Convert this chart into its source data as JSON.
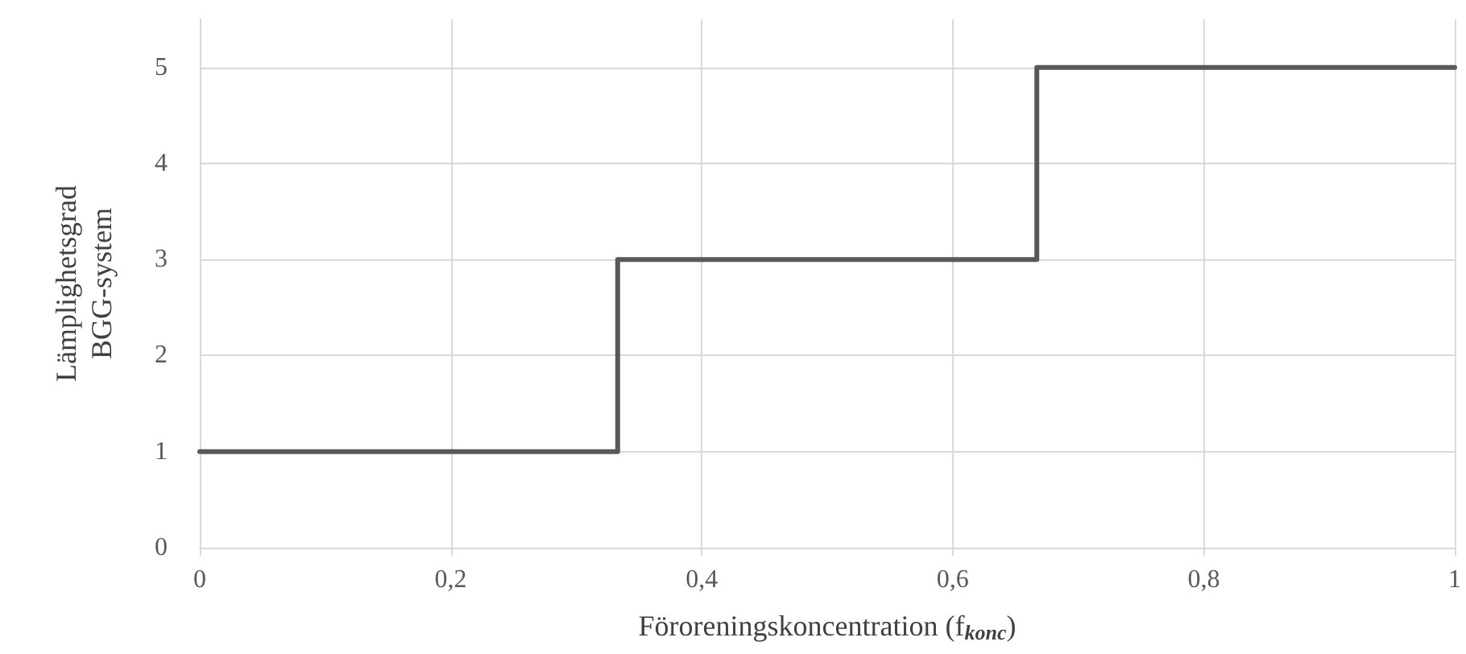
{
  "chart_data": {
    "type": "step",
    "xlabel": "Föroreningskoncentration (f$_{konc}$)",
    "ylabel": "Lämplighetsgrad\nBGG-system",
    "x": [
      0,
      0.333,
      0.667,
      1
    ],
    "series": [
      {
        "color": "#595959",
        "values": [
          1,
          3,
          5,
          5
        ]
      }
    ],
    "xlim": [
      0,
      1
    ],
    "xticks": [
      0,
      {
        "value": 0.2,
        "label": "0,2"
      },
      {
        "value": 0.4,
        "label": "0,4"
      },
      {
        "value": 0.6,
        "label": "0,6"
      },
      {
        "value": 0.8,
        "label": "0,8"
      },
      1
    ],
    "ylim": [
      0,
      5.5
    ],
    "yticks": [
      0,
      1,
      2,
      3,
      4,
      5
    ],
    "grid": true,
    "marker": "none",
    "line_style": "solid"
  }
}
